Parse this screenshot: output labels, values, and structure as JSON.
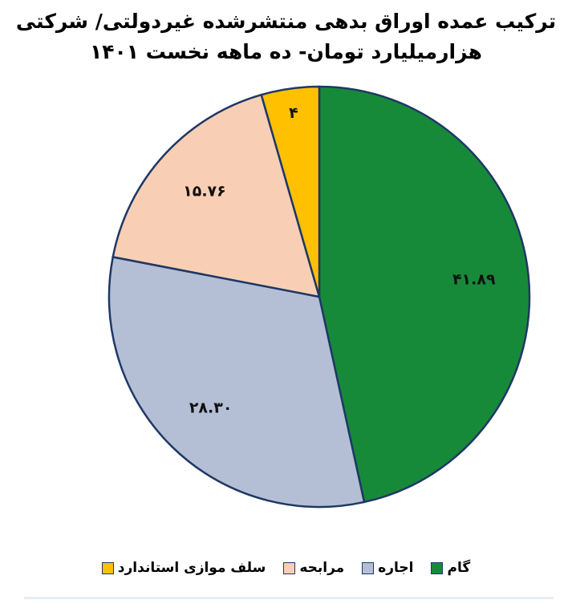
{
  "chart_data": {
    "type": "pie",
    "title": "ترکیب عمده اوراق بدهی منتشرشده غیردولتی/ شرکتی",
    "subtitle": "هزارمیلیارد تومان- ده ماهه نخست ۱۴۰۱",
    "categories": [
      "گام",
      "اجاره",
      "مرابحه",
      "سلف موازی استاندارد"
    ],
    "values": [
      41.89,
      28.3,
      15.76,
      4
    ],
    "value_labels": [
      "۴۱.۸۹",
      "۲۸.۳۰",
      "۱۵.۷۶",
      "۴"
    ],
    "colors": [
      "#178a3a",
      "#b4bfd6",
      "#f8cfb5",
      "#ffc000"
    ],
    "legend": "bottom"
  }
}
